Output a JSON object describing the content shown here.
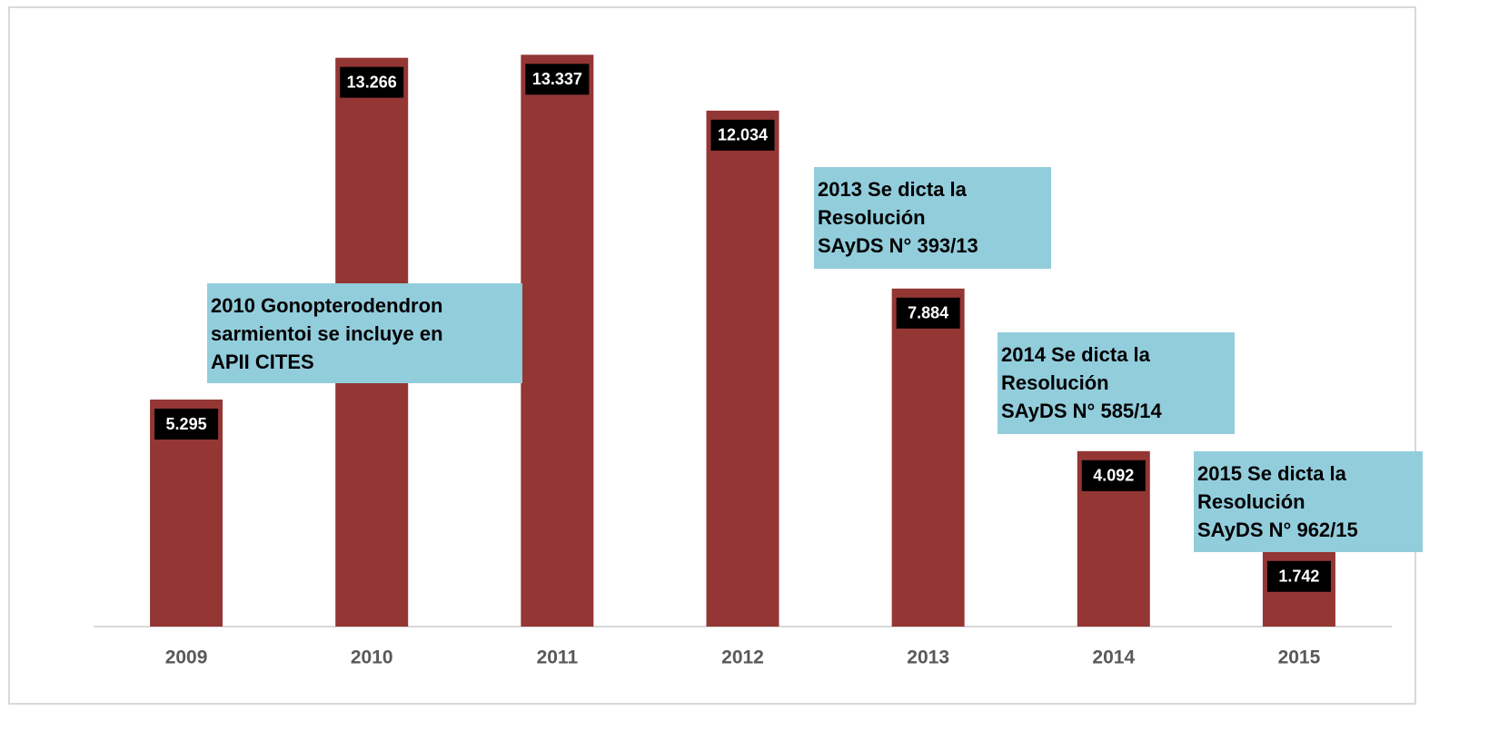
{
  "chart_data": {
    "type": "bar",
    "categories": [
      "2009",
      "2010",
      "2011",
      "2012",
      "2013",
      "2014",
      "2015"
    ],
    "values": [
      5295,
      13266,
      13337,
      12034,
      7884,
      4092,
      1742
    ],
    "value_labels": [
      "5.295",
      "13.266",
      "13.337",
      "12.034",
      "7.884",
      "4.092",
      "1.742"
    ],
    "color": "#943634",
    "ylim": [
      0,
      14000
    ],
    "grid": false,
    "annotations": [
      [
        "2010 Gonopterodendron",
        "sarmientoi se incluye en",
        "APII CITES"
      ],
      [
        "2013 Se dicta la",
        "Resolución",
        "SAyDS N° 393/13"
      ],
      [
        "2014 Se dicta la",
        "Resolución",
        "SAyDS N° 585/14"
      ],
      [
        "2015 Se dicta la",
        "Resolución",
        "SAyDS N° 962/15"
      ]
    ]
  }
}
